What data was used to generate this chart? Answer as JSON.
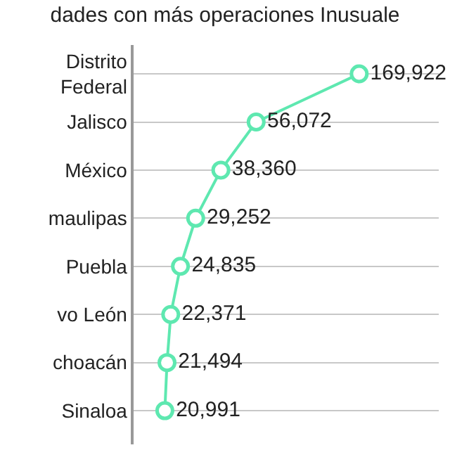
{
  "chart_data": {
    "type": "line",
    "orientation": "horizontal",
    "title": "dades con más operaciones Inusuale",
    "categories": [
      "Distrito Federal",
      "Jalisco",
      "México",
      "maulipas",
      "Puebla",
      "vo León",
      "choacán",
      "Sinaloa"
    ],
    "series": [
      {
        "color": "#5ee8b0",
        "values": [
          169922,
          56072,
          38360,
          29252,
          24835,
          22371,
          21494,
          20991
        ],
        "value_labels": [
          "169,922",
          "56,072",
          "38,360",
          "29,252",
          "24,835",
          "22,371",
          "21,494",
          "20,991"
        ]
      }
    ],
    "log": "x",
    "xlim": [
      15000,
      400000
    ],
    "tick_labels": "y",
    "grid": "y",
    "marker": "circle",
    "line_style": "solid",
    "legend": false
  }
}
